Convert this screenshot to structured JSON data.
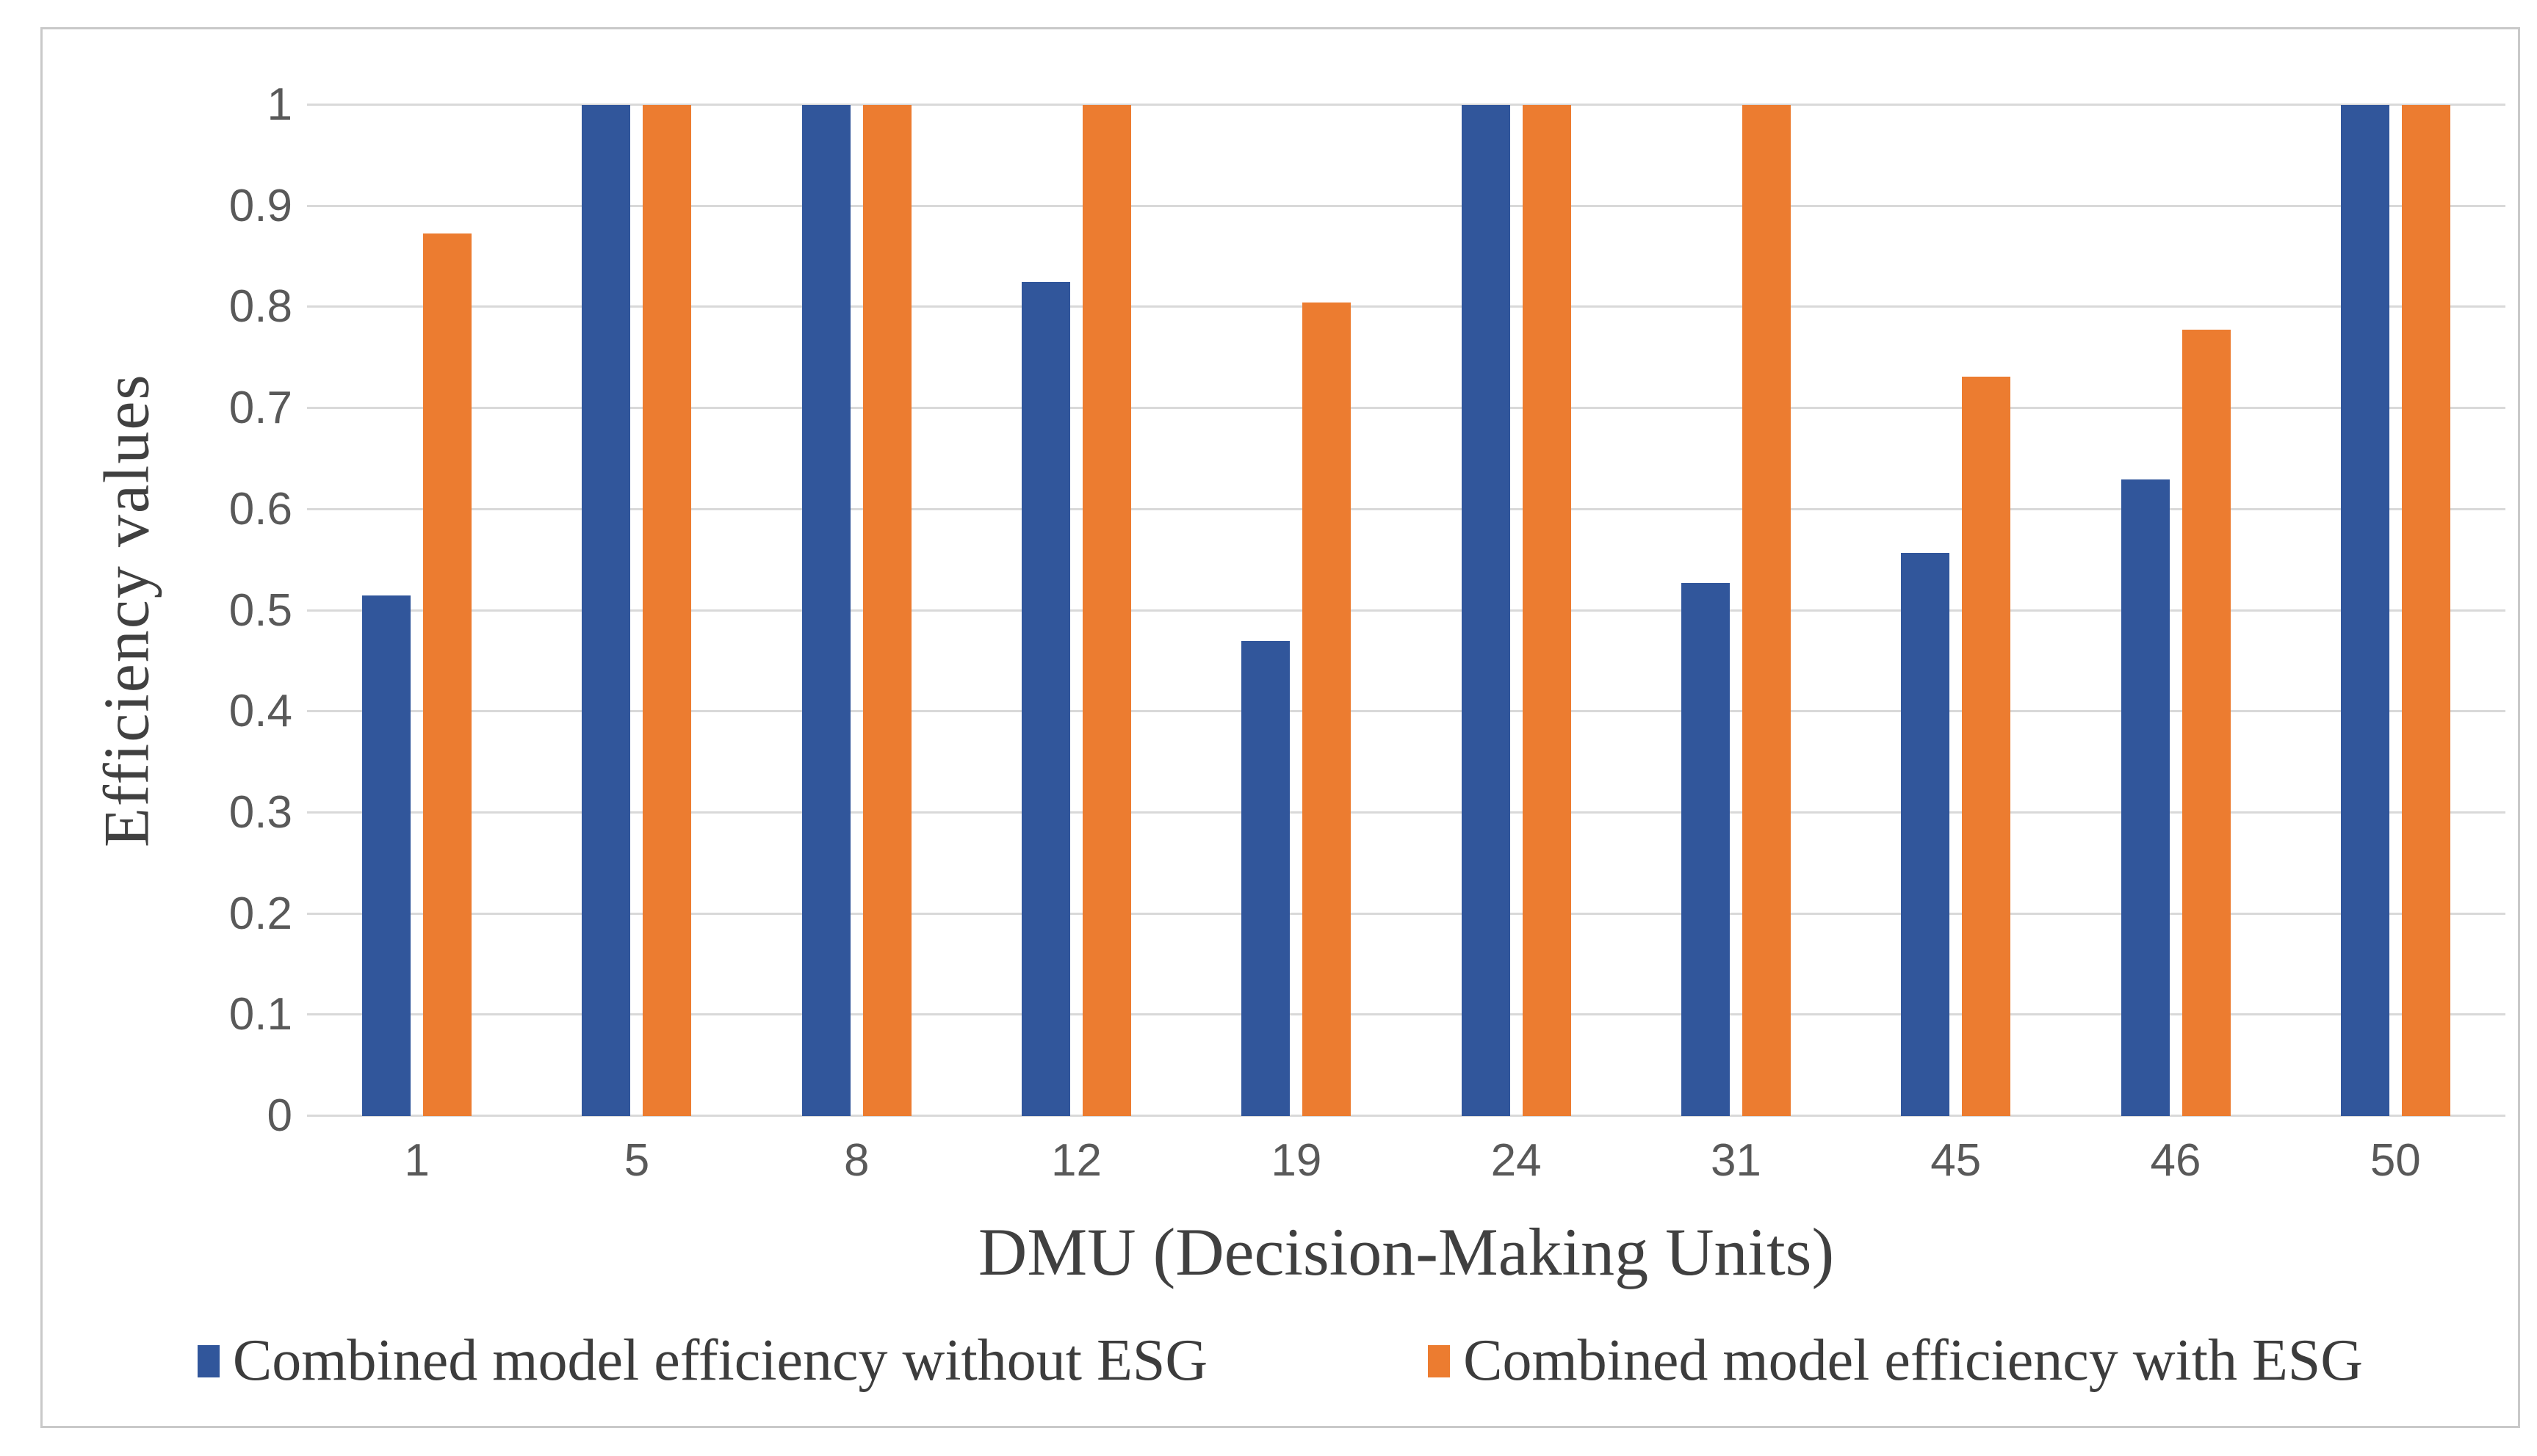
{
  "figure": {
    "background": "#ffffff",
    "border_color": "#c9c9c9",
    "gridline_color": "#d9d9d9",
    "tick_text_color": "#595959",
    "title_text_color": "#404040"
  },
  "chart_data": {
    "type": "bar",
    "title": "",
    "categories": [
      "1",
      "5",
      "8",
      "12",
      "19",
      "24",
      "31",
      "45",
      "46",
      "50"
    ],
    "series": [
      {
        "name": "Combined model efficiency without ESG",
        "color": "#31569B",
        "values": [
          0.515,
          1.0,
          1.0,
          0.825,
          0.47,
          1.0,
          0.527,
          0.557,
          0.63,
          1.0
        ]
      },
      {
        "name": "Combined model efficiency with ESG",
        "color": "#EC7C30",
        "values": [
          0.873,
          1.0,
          1.0,
          1.0,
          0.805,
          1.0,
          1.0,
          0.731,
          0.778,
          1.0
        ]
      }
    ],
    "xlabel": "DMU (Decision-Making Units)",
    "ylabel": "Efficiency values",
    "ylim": [
      0,
      1
    ],
    "yticks": [
      0,
      0.1,
      0.2,
      0.3,
      0.4,
      0.5,
      0.6,
      0.7,
      0.8,
      0.9,
      1
    ],
    "ytick_labels": [
      "0",
      "0.1",
      "0.2",
      "0.3",
      "0.4",
      "0.5",
      "0.6",
      "0.7",
      "0.8",
      "0.9",
      "1"
    ],
    "grid": "horizontal",
    "legend_position": "bottom"
  }
}
